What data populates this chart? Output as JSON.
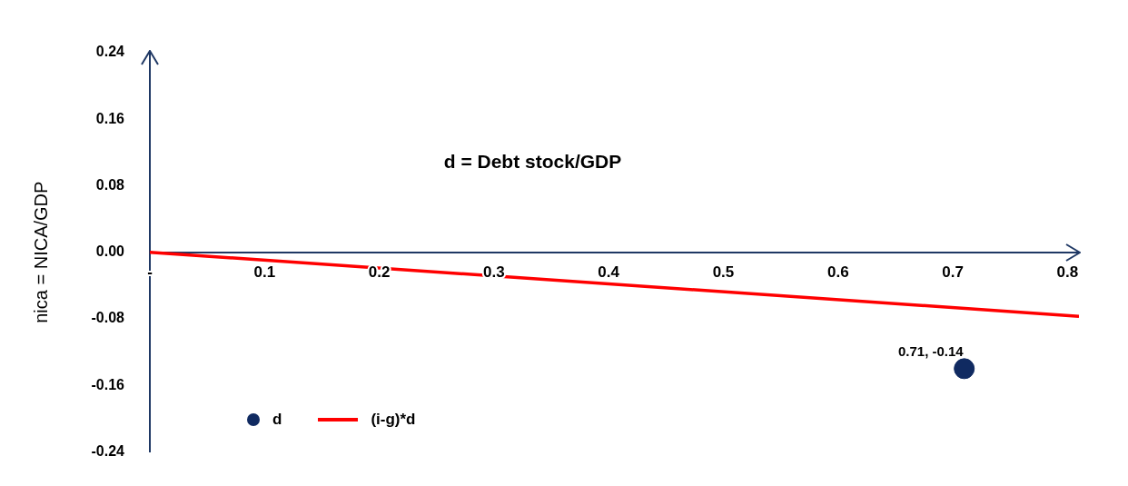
{
  "chart_data": {
    "type": "scatter",
    "xlabel": "d = Debt stock/GDP",
    "ylabel": "nica = NICA/GDP",
    "xlim": [
      0,
      0.81
    ],
    "xticks": [
      {
        "value": 0,
        "label": "-"
      },
      0.1,
      0.2,
      0.3,
      0.4,
      0.5,
      0.6,
      0.7,
      0.8
    ],
    "ylim": [
      -0.24,
      0.24
    ],
    "yticks": [
      {
        "value": -0.24,
        "label": "-0.24"
      },
      {
        "value": -0.16,
        "label": "-0.16"
      },
      {
        "value": -0.08,
        "label": "-0.08"
      },
      {
        "value": 0,
        "label": "0.00"
      },
      {
        "value": 0.08,
        "label": "0.08"
      },
      {
        "value": 0.16,
        "label": "0.16"
      },
      {
        "value": 0.24,
        "label": "0.24"
      }
    ],
    "grid": false,
    "legend": "bottom left",
    "series": [
      {
        "name": "d",
        "color": "#102a61",
        "marker": "circle",
        "x": [
          0.71
        ],
        "values": [
          -0.14
        ],
        "value_labels": [
          "0.71, -0.14"
        ]
      },
      {
        "name": "(i-g)*d",
        "type": "line",
        "color": "#ff0000",
        "marker": "none",
        "line_style": "solid",
        "x": [
          0,
          0.81
        ],
        "values": [
          0,
          -0.077
        ]
      }
    ]
  }
}
